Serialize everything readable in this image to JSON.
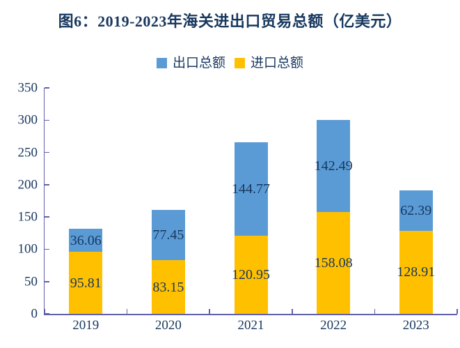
{
  "title": "图6：2019-2023年海关进出口贸易总额（亿美元）",
  "legend": [
    {
      "label": "出口总额",
      "color": "#5B9BD5"
    },
    {
      "label": "进口总额",
      "color": "#FFC000"
    }
  ],
  "chart_data": {
    "type": "bar",
    "stacked": true,
    "title": "图6：2019-2023年海关进出口贸易总额（亿美元）",
    "categories": [
      "2019",
      "2020",
      "2021",
      "2022",
      "2023"
    ],
    "series": [
      {
        "name": "进口总额",
        "role": "bottom-segment",
        "color": "#FFC000",
        "values": [
          95.81,
          83.15,
          120.95,
          158.08,
          128.91
        ]
      },
      {
        "name": "出口总额",
        "role": "top-segment",
        "color": "#5B9BD5",
        "values": [
          36.06,
          77.45,
          144.77,
          142.49,
          62.39
        ]
      }
    ],
    "xlabel": "",
    "ylabel": "",
    "ylim": [
      0,
      350
    ],
    "yticks": [
      0,
      50,
      100,
      150,
      200,
      250,
      300,
      350
    ],
    "grid": false,
    "legend_position": "top-center",
    "data_labels": "centered in each segment, 2 decimal places"
  },
  "colors": {
    "title_text": "#17375E",
    "label_text": "#17375E",
    "axis_line": "#6060AC",
    "export_bar": "#5B9BD5",
    "import_bar": "#FFC000",
    "background": "#FFFFFF"
  }
}
